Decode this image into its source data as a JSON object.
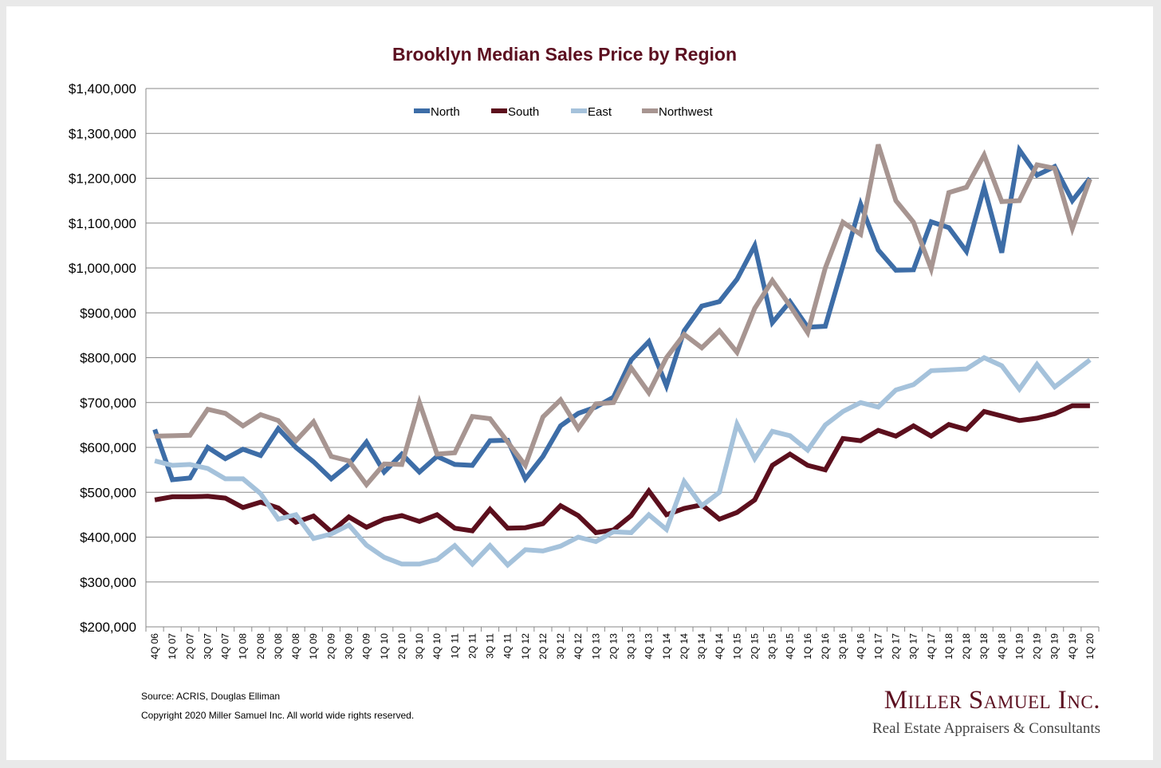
{
  "chart_data": {
    "type": "line",
    "title": "Brooklyn Median Sales Price by Region",
    "xlabel": "",
    "ylabel": "",
    "ylim": [
      200000,
      1400000
    ],
    "yticks": [
      "$200,000",
      "$300,000",
      "$400,000",
      "$500,000",
      "$600,000",
      "$700,000",
      "$800,000",
      "$900,000",
      "$1,000,000",
      "$1,100,000",
      "$1,200,000",
      "$1,300,000",
      "$1,400,000"
    ],
    "ytick_values": [
      200000,
      300000,
      400000,
      500000,
      600000,
      700000,
      800000,
      900000,
      1000000,
      1100000,
      1200000,
      1300000,
      1400000
    ],
    "grid": "horizontal",
    "legend_position": "top-center",
    "categories": [
      "4Q 06",
      "1Q 07",
      "2Q 07",
      "3Q 07",
      "4Q 07",
      "1Q 08",
      "2Q 08",
      "3Q 08",
      "4Q 08",
      "1Q 09",
      "2Q 09",
      "3Q 09",
      "4Q 09",
      "1Q 10",
      "2Q 10",
      "3Q 10",
      "4Q 10",
      "1Q 11",
      "2Q 11",
      "3Q 11",
      "4Q 11",
      "1Q 12",
      "2Q 12",
      "3Q 12",
      "4Q 12",
      "1Q 13",
      "2Q 13",
      "3Q 13",
      "4Q 13",
      "1Q 14",
      "2Q 14",
      "3Q 14",
      "4Q 14",
      "1Q 15",
      "2Q 15",
      "3Q 15",
      "4Q 15",
      "1Q 16",
      "2Q 16",
      "3Q 16",
      "4Q 16",
      "1Q 17",
      "2Q 17",
      "3Q 17",
      "4Q 17",
      "1Q 18",
      "2Q 18",
      "3Q 18",
      "4Q 18",
      "1Q 19",
      "2Q 19",
      "3Q 19",
      "4Q 19",
      "1Q 20"
    ],
    "series": [
      {
        "name": "North",
        "color": "#3d6da7",
        "values": [
          640000,
          528000,
          532000,
          600000,
          575000,
          596000,
          582000,
          642000,
          600000,
          568000,
          530000,
          562000,
          612000,
          545000,
          585000,
          545000,
          580000,
          562000,
          560000,
          615000,
          616000,
          530000,
          580000,
          648000,
          676000,
          690000,
          712000,
          795000,
          836000,
          737000,
          860000,
          915000,
          925000,
          975000,
          1050000,
          878000,
          925000,
          868000,
          870000,
          1005000,
          1142000,
          1040000,
          995000,
          996000,
          1103000,
          1090000,
          1037000,
          1180000,
          1034000,
          1263000,
          1207000,
          1226000,
          1150000,
          1200000
        ]
      },
      {
        "name": "South",
        "color": "#5c0f1d",
        "values": [
          483000,
          490000,
          490000,
          491000,
          487000,
          466000,
          478000,
          465000,
          433000,
          447000,
          412000,
          445000,
          422000,
          440000,
          448000,
          435000,
          450000,
          420000,
          414000,
          462000,
          420000,
          421000,
          430000,
          470000,
          448000,
          410000,
          416000,
          448000,
          503000,
          450000,
          464000,
          472000,
          440000,
          455000,
          483000,
          560000,
          585000,
          560000,
          550000,
          620000,
          615000,
          638000,
          625000,
          648000,
          625000,
          651000,
          640000,
          680000,
          670000,
          660000,
          665000,
          675000,
          693000,
          693000
        ]
      },
      {
        "name": "East",
        "color": "#a5c2db",
        "values": [
          570000,
          560000,
          562000,
          553000,
          530000,
          530000,
          497000,
          440000,
          450000,
          397000,
          407000,
          427000,
          382000,
          355000,
          340000,
          340000,
          350000,
          381000,
          340000,
          381000,
          338000,
          372000,
          369000,
          380000,
          400000,
          390000,
          412000,
          410000,
          450000,
          417000,
          524000,
          470000,
          500000,
          652000,
          575000,
          636000,
          626000,
          594000,
          650000,
          680000,
          700000,
          690000,
          728000,
          740000,
          771000,
          773000,
          775000,
          800000,
          782000,
          730000,
          785000,
          735000,
          765000,
          795000
        ]
      },
      {
        "name": "Northwest",
        "color": "#a79591",
        "values": [
          625000,
          626000,
          627000,
          685000,
          676000,
          648000,
          673000,
          660000,
          615000,
          657000,
          580000,
          570000,
          517000,
          563000,
          562000,
          700000,
          585000,
          588000,
          669000,
          664000,
          612000,
          560000,
          668000,
          706000,
          642000,
          697000,
          700000,
          777000,
          722000,
          800000,
          852000,
          822000,
          860000,
          812000,
          910000,
          972000,
          916000,
          856000,
          1000000,
          1102000,
          1075000,
          1275000,
          1150000,
          1102000,
          998000,
          1168000,
          1180000,
          1252000,
          1148000,
          1150000,
          1230000,
          1222000,
          1088000,
          1198000
        ]
      }
    ]
  },
  "footer": {
    "source": "Source: ACRIS, Douglas Elliman",
    "copyright": "Copyright 2020 Miller Samuel Inc.  All world wide rights reserved."
  },
  "logo": {
    "name": "Miller Samuel Inc.",
    "tagline": "Real Estate Appraisers & Consultants"
  }
}
